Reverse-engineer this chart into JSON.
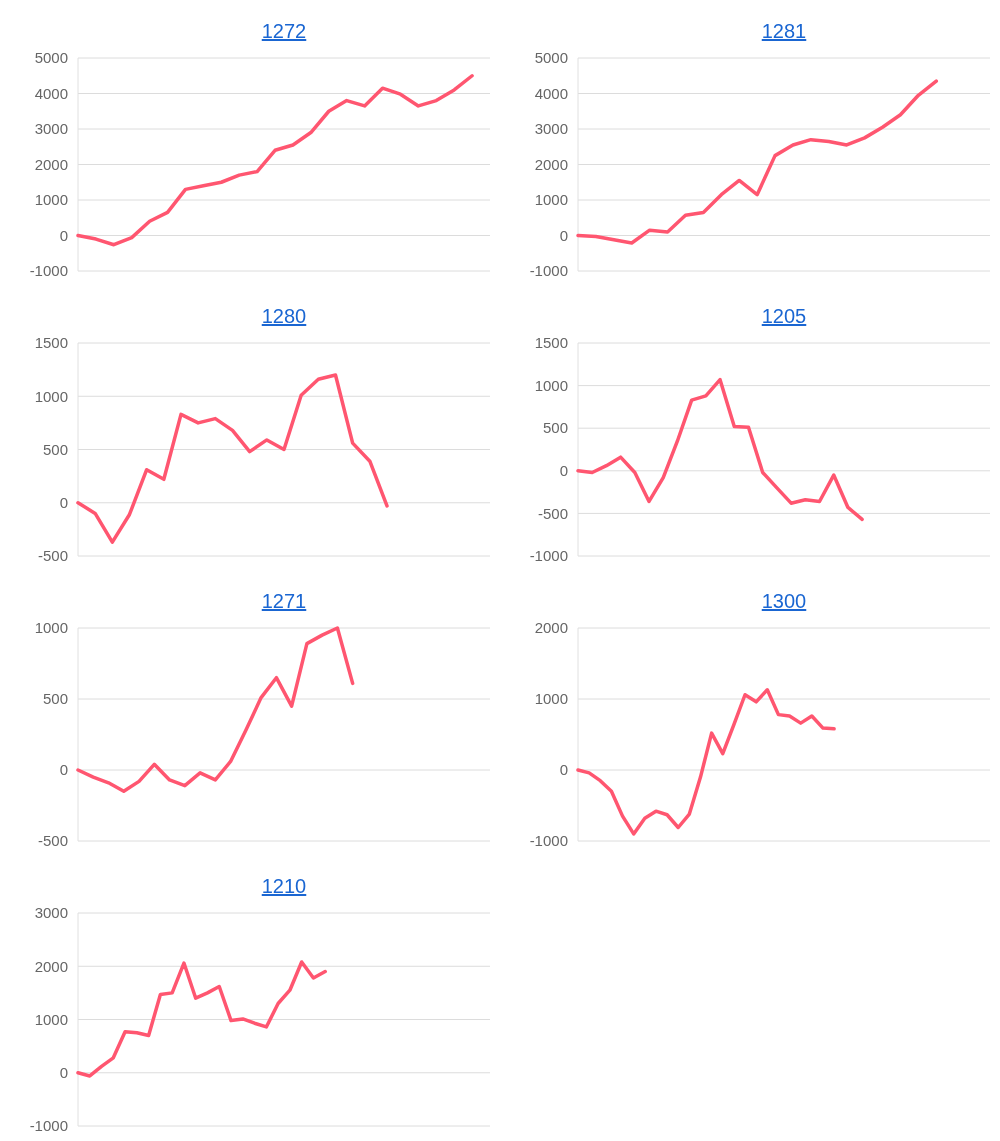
{
  "chart_data": [
    {
      "type": "line",
      "title": "1272",
      "categories": [
        null,
        null,
        null,
        null,
        null,
        null,
        null,
        null,
        null,
        null,
        null,
        null,
        null,
        null,
        null,
        null,
        null,
        null,
        null,
        null,
        null,
        null,
        null,
        null
      ],
      "series": [
        {
          "color": "#ff5670",
          "values": [
            0,
            -100,
            -260,
            -60,
            400,
            650,
            1300,
            1400,
            1500,
            1700,
            1800,
            2400,
            2550,
            2900,
            3500,
            3800,
            3650,
            4150,
            3980,
            3650,
            3800,
            4100,
            4500,
            null
          ]
        }
      ],
      "ylim": [
        -1000,
        5000
      ],
      "yticks": [
        -1000,
        0,
        1000,
        2000,
        3000,
        4000,
        5000
      ],
      "grid": "y"
    },
    {
      "type": "line",
      "title": "1281",
      "categories": [
        null,
        null,
        null,
        null,
        null,
        null,
        null,
        null,
        null,
        null,
        null,
        null,
        null,
        null,
        null,
        null,
        null,
        null,
        null,
        null,
        null,
        null,
        null,
        null
      ],
      "series": [
        {
          "color": "#ff5670",
          "values": [
            0,
            -30,
            -120,
            -210,
            150,
            100,
            570,
            650,
            1150,
            1550,
            1150,
            2250,
            2550,
            2700,
            2650,
            2550,
            2750,
            3050,
            3400,
            3950,
            4350,
            null,
            null,
            null
          ]
        }
      ],
      "ylim": [
        -1000,
        5000
      ],
      "yticks": [
        -1000,
        0,
        1000,
        2000,
        3000,
        4000,
        5000
      ],
      "grid": "y"
    },
    {
      "type": "line",
      "title": "1280",
      "categories": [
        null,
        null,
        null,
        null,
        null,
        null,
        null,
        null,
        null,
        null,
        null,
        null,
        null,
        null,
        null,
        null,
        null,
        null,
        null,
        null,
        null,
        null,
        null,
        null,
        null
      ],
      "series": [
        {
          "color": "#ff5670",
          "values": [
            0,
            -100,
            -370,
            -110,
            310,
            220,
            830,
            750,
            790,
            680,
            480,
            590,
            500,
            1010,
            1160,
            1200,
            560,
            390,
            -30,
            null,
            null,
            null,
            null,
            null,
            null
          ]
        }
      ],
      "ylim": [
        -500,
        1500
      ],
      "yticks": [
        -500,
        0,
        500,
        1000,
        1500
      ],
      "grid": "y"
    },
    {
      "type": "line",
      "title": "1205",
      "categories": [
        null,
        null,
        null,
        null,
        null,
        null,
        null,
        null,
        null,
        null,
        null,
        null,
        null,
        null,
        null,
        null,
        null,
        null,
        null,
        null,
        null,
        null,
        null,
        null,
        null,
        null,
        null,
        null,
        null,
        null
      ],
      "series": [
        {
          "color": "#ff5670",
          "values": [
            0,
            -20,
            60,
            160,
            -20,
            -360,
            -80,
            350,
            830,
            880,
            1070,
            520,
            510,
            -20,
            -200,
            -380,
            -340,
            -360,
            -50,
            -430,
            -570,
            null,
            null,
            null,
            null,
            null,
            null,
            null,
            null,
            null
          ]
        }
      ],
      "ylim": [
        -1000,
        1500
      ],
      "yticks": [
        -1000,
        -500,
        0,
        500,
        1000,
        1500
      ],
      "grid": "y"
    },
    {
      "type": "line",
      "title": "1271",
      "categories": [
        null,
        null,
        null,
        null,
        null,
        null,
        null,
        null,
        null,
        null,
        null,
        null,
        null,
        null,
        null,
        null,
        null,
        null,
        null,
        null,
        null,
        null,
        null,
        null,
        null,
        null,
        null,
        null
      ],
      "series": [
        {
          "color": "#ff5670",
          "values": [
            0,
            -50,
            -90,
            -150,
            -80,
            40,
            -70,
            -110,
            -20,
            -70,
            60,
            280,
            510,
            650,
            450,
            890,
            950,
            1000,
            610,
            null,
            null,
            null,
            null,
            null,
            null,
            null,
            null,
            null
          ]
        }
      ],
      "ylim": [
        -500,
        1000
      ],
      "yticks": [
        -500,
        0,
        500,
        1000
      ],
      "grid": "y"
    },
    {
      "type": "line",
      "title": "1300",
      "categories": [
        null,
        null,
        null,
        null,
        null,
        null,
        null,
        null,
        null,
        null,
        null,
        null,
        null,
        null,
        null,
        null,
        null,
        null,
        null,
        null,
        null,
        null,
        null,
        null,
        null,
        null,
        null,
        null,
        null,
        null,
        null,
        null,
        null,
        null,
        null,
        null,
        null,
        null
      ],
      "series": [
        {
          "color": "#ff5670",
          "values": [
            0,
            -40,
            -150,
            -300,
            -650,
            -900,
            -680,
            -580,
            -630,
            -810,
            -620,
            -100,
            520,
            230,
            640,
            1060,
            960,
            1130,
            780,
            760,
            660,
            760,
            590,
            580,
            null,
            null,
            null,
            null,
            null,
            null,
            null,
            null,
            null,
            null,
            null,
            null,
            null,
            null
          ]
        }
      ],
      "ylim": [
        -1000,
        2000
      ],
      "yticks": [
        -1000,
        0,
        1000,
        2000
      ],
      "grid": "y"
    },
    {
      "type": "line",
      "title": "1210",
      "categories": [
        null,
        null,
        null,
        null,
        null,
        null,
        null,
        null,
        null,
        null,
        null,
        null,
        null,
        null,
        null,
        null,
        null,
        null,
        null,
        null,
        null,
        null,
        null,
        null,
        null,
        null,
        null,
        null,
        null,
        null,
        null,
        null,
        null,
        null,
        null,
        null
      ],
      "series": [
        {
          "color": "#ff5670",
          "values": [
            0,
            -60,
            120,
            280,
            770,
            750,
            700,
            1470,
            1500,
            2060,
            1400,
            1500,
            1620,
            980,
            1010,
            930,
            860,
            1300,
            1550,
            2080,
            1780,
            1900,
            null,
            null,
            null,
            null,
            null,
            null,
            null,
            null,
            null,
            null,
            null,
            null,
            null,
            null
          ]
        }
      ],
      "ylim": [
        -1000,
        3000
      ],
      "yticks": [
        -1000,
        0,
        1000,
        2000,
        3000
      ],
      "grid": "y"
    }
  ]
}
